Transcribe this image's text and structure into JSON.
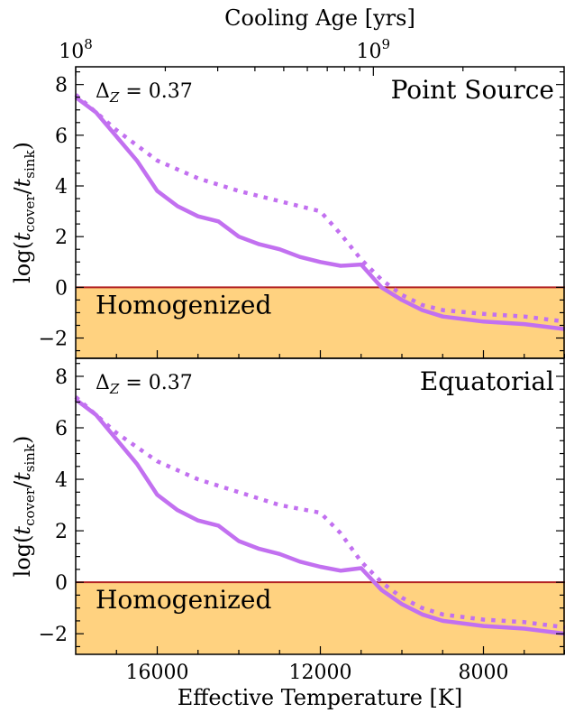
{
  "chart_data": {
    "type": "line",
    "xlabel": "Effective Temperature [K]",
    "top_xlabel": "Cooling Age [yrs]",
    "ylabel": "log(t_cover/t_sink)",
    "ylabel_parts": {
      "prefix": "log(",
      "t1": "t",
      "s1": "cover",
      "sep": "/",
      "t2": "t",
      "s2": "sink",
      "suffix": ")"
    },
    "xlim": [
      18000,
      6000
    ],
    "ylim": [
      -2.8,
      8.7
    ],
    "x_ticks": [
      16000,
      12000,
      8000
    ],
    "x_tick_labels": [
      "16000",
      "12000",
      "8000"
    ],
    "y_ticks": [
      -2,
      0,
      2,
      4,
      6,
      8
    ],
    "y_tick_labels": [
      "−2",
      "0",
      "2",
      "4",
      "6",
      "8"
    ],
    "top_ticks": [
      {
        "label_base": "10",
        "label_exp": "8",
        "teff": 18000
      },
      {
        "label_base": "10",
        "label_exp": "9",
        "teff": 10700
      }
    ],
    "threshold": 0,
    "colors": {
      "line": "#c270f0",
      "threshold": "#b22222",
      "band": "#ffd280"
    },
    "panels": [
      {
        "title": "Point Source",
        "annotation": {
          "delta": "Δ",
          "sub": "Z",
          "rest": " = 0.37"
        },
        "band_label": "Homogenized",
        "series": [
          {
            "style": "solid",
            "x": [
              18000,
              17500,
              16500,
              16000,
              15500,
              15000,
              14500,
              14000,
              13500,
              13000,
              12500,
              12000,
              11500,
              11000,
              10500,
              10000,
              9500,
              9000,
              8000,
              7000,
              6000
            ],
            "y": [
              7.5,
              6.9,
              5.0,
              3.8,
              3.2,
              2.8,
              2.6,
              2.0,
              1.7,
              1.5,
              1.2,
              1.0,
              0.85,
              0.9,
              0.0,
              -0.5,
              -0.9,
              -1.15,
              -1.35,
              -1.45,
              -1.65
            ]
          },
          {
            "style": "dotted",
            "x": [
              18000,
              17000,
              16000,
              15000,
              14000,
              13000,
              12000,
              11500,
              11000,
              10500,
              10000,
              9500,
              9000,
              8000,
              7000,
              6000
            ],
            "y": [
              7.6,
              6.2,
              5.0,
              4.3,
              3.8,
              3.4,
              3.0,
              2.1,
              1.1,
              0.3,
              -0.3,
              -0.7,
              -0.9,
              -1.05,
              -1.15,
              -1.35
            ]
          }
        ]
      },
      {
        "title": "Equatorial",
        "annotation": {
          "delta": "Δ",
          "sub": "Z",
          "rest": " = 0.37"
        },
        "band_label": "Homogenized",
        "series": [
          {
            "style": "solid",
            "x": [
              18000,
              17500,
              16500,
              16000,
              15500,
              15000,
              14500,
              14000,
              13500,
              13000,
              12500,
              12000,
              11500,
              11000,
              10500,
              10000,
              9500,
              9000,
              8000,
              7000,
              6000
            ],
            "y": [
              7.1,
              6.5,
              4.6,
              3.4,
              2.8,
              2.4,
              2.2,
              1.6,
              1.3,
              1.1,
              0.8,
              0.6,
              0.45,
              0.55,
              -0.3,
              -0.85,
              -1.25,
              -1.5,
              -1.7,
              -1.8,
              -2.0
            ]
          },
          {
            "style": "dotted",
            "x": [
              18000,
              17000,
              16000,
              15000,
              14000,
              13000,
              12000,
              11500,
              11000,
              10500,
              10000,
              9500,
              9000,
              8000,
              7000,
              6000
            ],
            "y": [
              7.2,
              5.8,
              4.7,
              4.0,
              3.5,
              3.0,
              2.7,
              1.9,
              0.8,
              0.0,
              -0.6,
              -1.0,
              -1.25,
              -1.45,
              -1.55,
              -1.75
            ]
          }
        ]
      }
    ]
  }
}
